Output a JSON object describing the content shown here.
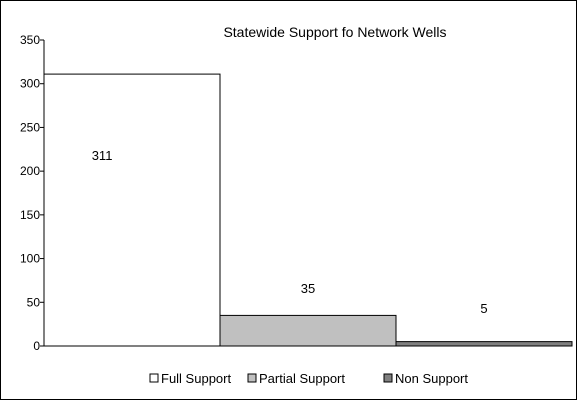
{
  "chart_data": {
    "type": "bar",
    "title": "Statewide Support fo Network Wells",
    "xlabel": "",
    "ylabel": "",
    "ylim": [
      0,
      350
    ],
    "yticks": [
      0,
      50,
      100,
      150,
      200,
      250,
      300,
      350
    ],
    "grid": false,
    "legend_position": "bottom",
    "categories": [
      "Full Support",
      "Partial Support",
      "Non Support"
    ],
    "values": [
      311,
      35,
      5
    ],
    "data_labels": [
      "311",
      "35",
      "5"
    ],
    "colors": [
      "#ffffff",
      "#c0c0c0",
      "#808080"
    ]
  }
}
